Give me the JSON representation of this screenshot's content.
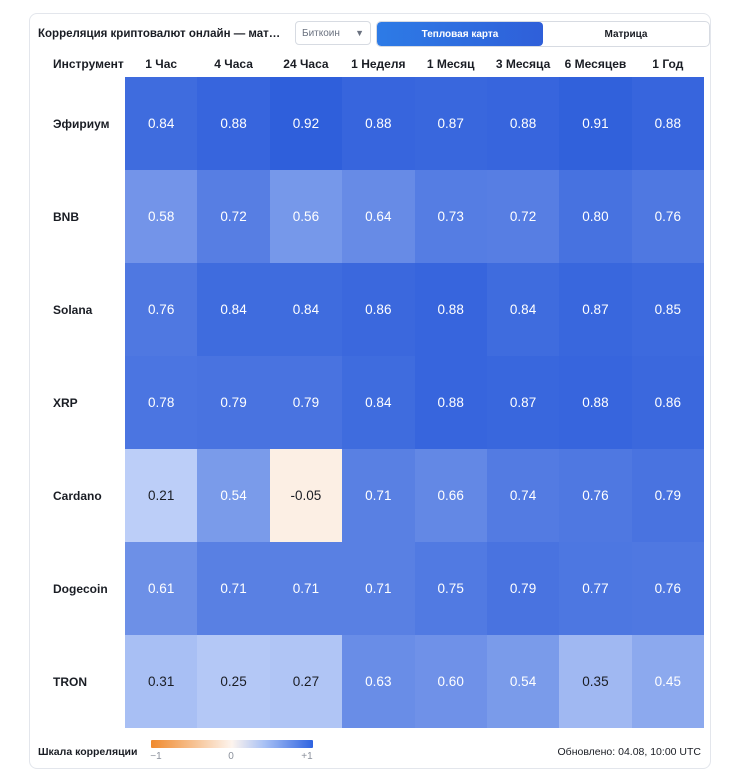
{
  "header": {
    "title": "Корреляция криптовалют онлайн — матри…",
    "select_value": "Биткоин",
    "toggle": [
      {
        "label": "Тепловая карта",
        "active": true
      },
      {
        "label": "Матрица",
        "active": false
      }
    ]
  },
  "table": {
    "instrument_header": "Инструмент",
    "columns": [
      "1 Час",
      "4 Часа",
      "24 Часа",
      "1 Неделя",
      "1 Месяц",
      "3 Месяца",
      "6 Месяцев",
      "1 Год"
    ],
    "rows": [
      {
        "name": "Эфириум",
        "values": [
          "0.84",
          "0.88",
          "0.92",
          "0.88",
          "0.87",
          "0.88",
          "0.91",
          "0.88"
        ]
      },
      {
        "name": "BNB",
        "values": [
          "0.58",
          "0.72",
          "0.56",
          "0.64",
          "0.73",
          "0.72",
          "0.80",
          "0.76"
        ]
      },
      {
        "name": "Solana",
        "values": [
          "0.76",
          "0.84",
          "0.84",
          "0.86",
          "0.88",
          "0.84",
          "0.87",
          "0.85"
        ]
      },
      {
        "name": "XRP",
        "values": [
          "0.78",
          "0.79",
          "0.79",
          "0.84",
          "0.88",
          "0.87",
          "0.88",
          "0.86"
        ]
      },
      {
        "name": "Cardano",
        "values": [
          "0.21",
          "0.54",
          "-0.05",
          "0.71",
          "0.66",
          "0.74",
          "0.76",
          "0.79"
        ]
      },
      {
        "name": "Dogecoin",
        "values": [
          "0.61",
          "0.71",
          "0.71",
          "0.71",
          "0.75",
          "0.79",
          "0.77",
          "0.76"
        ]
      },
      {
        "name": "TRON",
        "values": [
          "0.31",
          "0.25",
          "0.27",
          "0.63",
          "0.60",
          "0.54",
          "0.35",
          "0.45"
        ]
      }
    ]
  },
  "footer": {
    "scale_label": "Шкала корреляции",
    "scale_ticks": [
      "−1",
      "0",
      "+1"
    ],
    "updated": "Обновлено: 04.08, 10:00 UTC"
  },
  "colors": {
    "strong_positive": "#2f5fdb",
    "neutral": "#fdf4ee",
    "negative": "#f08a2e"
  }
}
